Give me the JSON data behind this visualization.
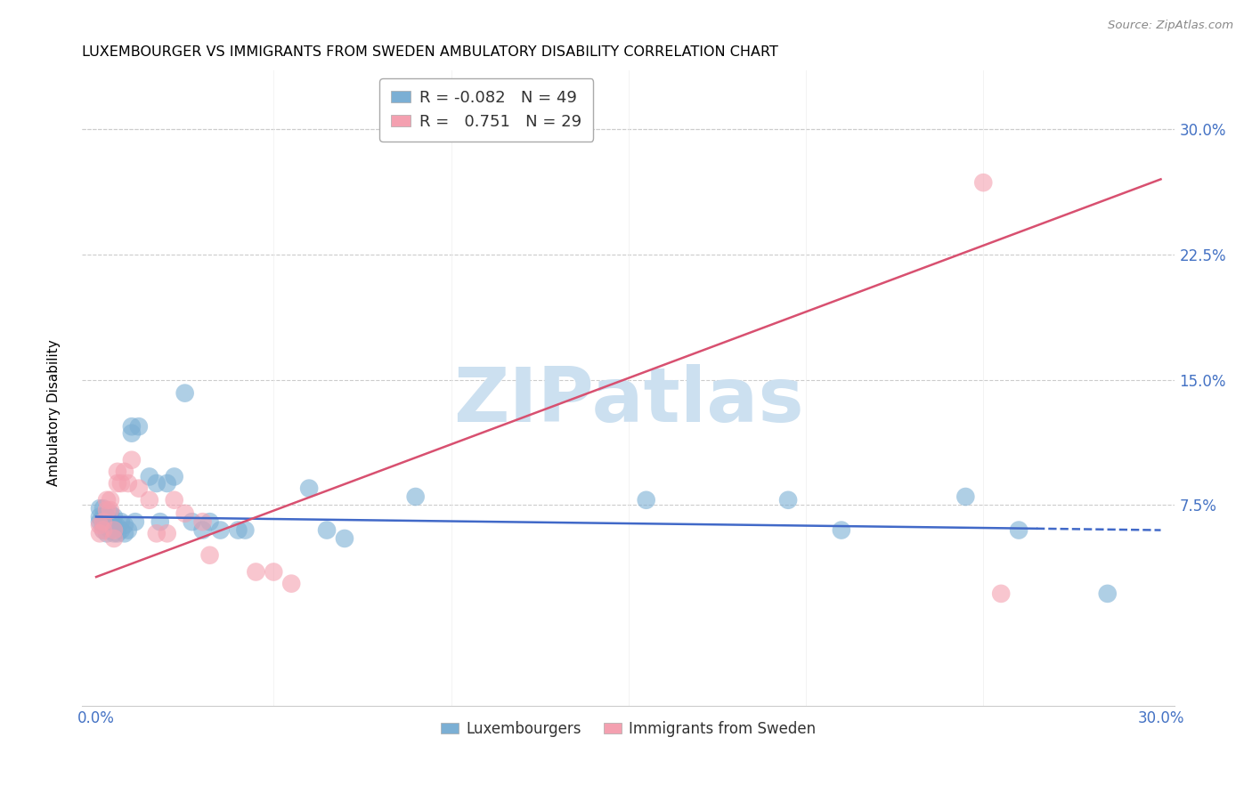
{
  "title": "LUXEMBOURGER VS IMMIGRANTS FROM SWEDEN AMBULATORY DISABILITY CORRELATION CHART",
  "source": "Source: ZipAtlas.com",
  "ylabel": "Ambulatory Disability",
  "xlim": [
    0.0,
    0.3
  ],
  "ylim": [
    -0.045,
    0.335
  ],
  "yticks": [
    0.075,
    0.15,
    0.225,
    0.3
  ],
  "ytick_labels": [
    "7.5%",
    "15.0%",
    "22.5%",
    "30.0%"
  ],
  "xtick_positions": [
    0.0,
    0.05,
    0.1,
    0.15,
    0.2,
    0.25,
    0.3
  ],
  "xtick_labels": [
    "0.0%",
    "",
    "",
    "",
    "",
    "",
    "30.0%"
  ],
  "group1_label": "Luxembourgers",
  "group2_label": "Immigrants from Sweden",
  "group1_color": "#7bafd4",
  "group2_color": "#f4a0b0",
  "group1_R": -0.082,
  "group1_N": 49,
  "group2_R": 0.751,
  "group2_N": 29,
  "group1_line_color": "#4169c8",
  "group2_line_color": "#d85070",
  "watermark": "ZIPatlas",
  "watermark_color": "#cce0f0",
  "g1_line_start_y": 0.068,
  "g1_line_end_y": 0.06,
  "g1_line_solid_end": 0.265,
  "g2_line_start_y": 0.032,
  "g2_line_end_y": 0.27,
  "group1_x": [
    0.001,
    0.001,
    0.001,
    0.002,
    0.002,
    0.002,
    0.002,
    0.003,
    0.003,
    0.003,
    0.004,
    0.004,
    0.004,
    0.005,
    0.005,
    0.005,
    0.006,
    0.006,
    0.007,
    0.007,
    0.008,
    0.008,
    0.009,
    0.01,
    0.01,
    0.011,
    0.012,
    0.015,
    0.017,
    0.018,
    0.02,
    0.022,
    0.025,
    0.027,
    0.03,
    0.032,
    0.035,
    0.04,
    0.042,
    0.06,
    0.065,
    0.07,
    0.09,
    0.155,
    0.195,
    0.21,
    0.245,
    0.26,
    0.285
  ],
  "group1_y": [
    0.065,
    0.068,
    0.073,
    0.06,
    0.063,
    0.068,
    0.073,
    0.058,
    0.062,
    0.068,
    0.06,
    0.065,
    0.07,
    0.058,
    0.063,
    0.068,
    0.058,
    0.062,
    0.06,
    0.065,
    0.058,
    0.063,
    0.06,
    0.118,
    0.122,
    0.065,
    0.122,
    0.092,
    0.088,
    0.065,
    0.088,
    0.092,
    0.142,
    0.065,
    0.06,
    0.065,
    0.06,
    0.06,
    0.06,
    0.085,
    0.06,
    0.055,
    0.08,
    0.078,
    0.078,
    0.06,
    0.08,
    0.06,
    0.022
  ],
  "group2_x": [
    0.001,
    0.001,
    0.002,
    0.002,
    0.003,
    0.003,
    0.004,
    0.004,
    0.005,
    0.005,
    0.006,
    0.006,
    0.007,
    0.008,
    0.009,
    0.01,
    0.012,
    0.015,
    0.017,
    0.02,
    0.022,
    0.025,
    0.03,
    0.032,
    0.045,
    0.05,
    0.055,
    0.25,
    0.255
  ],
  "group2_y": [
    0.058,
    0.063,
    0.06,
    0.065,
    0.072,
    0.078,
    0.072,
    0.078,
    0.055,
    0.06,
    0.088,
    0.095,
    0.088,
    0.095,
    0.088,
    0.102,
    0.085,
    0.078,
    0.058,
    0.058,
    0.078,
    0.07,
    0.065,
    0.045,
    0.035,
    0.035,
    0.028,
    0.268,
    0.022
  ]
}
